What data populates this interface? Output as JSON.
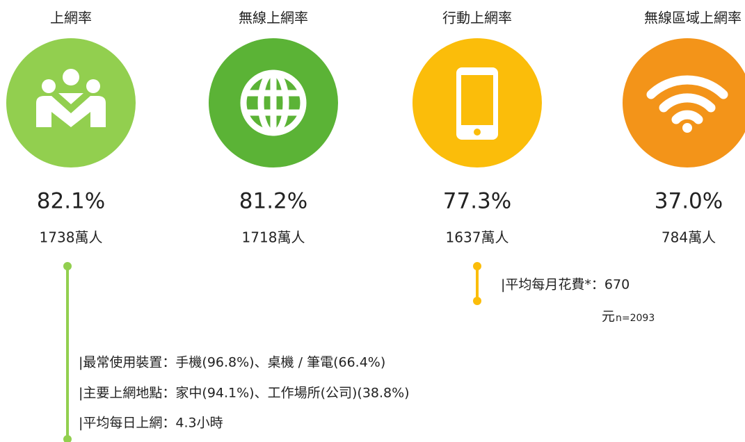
{
  "stats": [
    {
      "label": "上網率",
      "percent": "82.1%",
      "count": "1738萬人"
    },
    {
      "label": "無線上網率",
      "percent": "81.2%",
      "count": "1718萬人"
    },
    {
      "label": "行動上網率",
      "percent": "77.3%",
      "count": "1637萬人"
    },
    {
      "label": "無線區域上網率",
      "percent": "37.0%",
      "count": "784萬人"
    }
  ],
  "mobile_note": {
    "text": "|平均每月花費*：670",
    "unit": "元",
    "sample": "n=2093"
  },
  "internet_notes": [
    "|最常使用裝置：手機(96.8%)、桌機 / 筆電(66.4%)",
    "|主要上網地點：家中(94.1%)、工作場所(公司)(38.8%)",
    "|平均每日上網：4.3小時"
  ]
}
